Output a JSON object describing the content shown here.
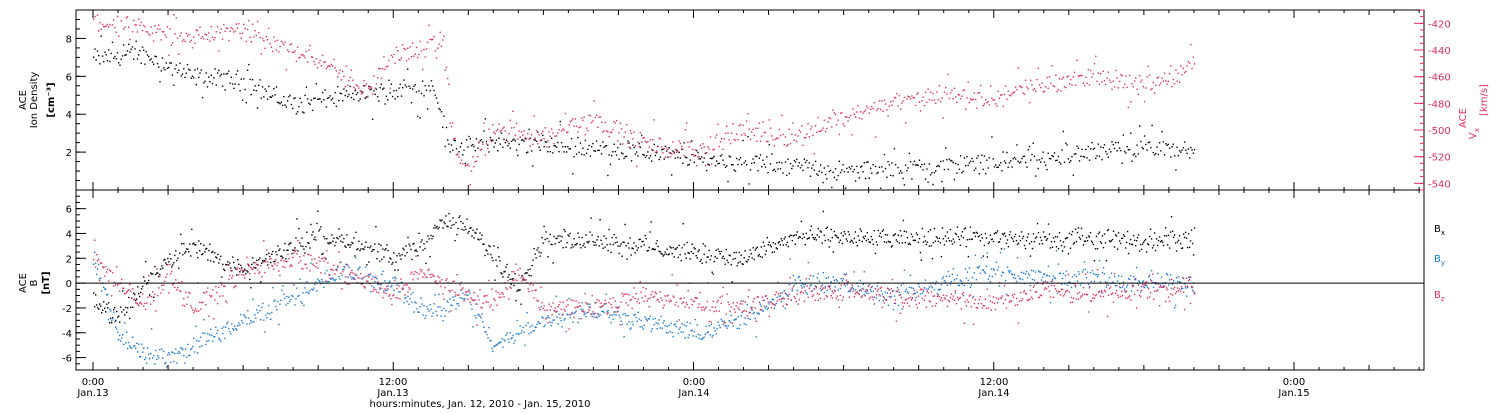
{
  "chart_data": [
    {
      "type": "scatter",
      "panel": "top",
      "ylabel_lines": [
        "ACE",
        "Ion Density"
      ],
      "yunit": "[cm⁻³]",
      "ylabel_right_lines": [
        "ACE",
        "V",
        "[km/s]"
      ],
      "ylabel_right_sub": "x",
      "yticks": [
        "2",
        "4",
        "6",
        "8"
      ],
      "yticks_right": [
        "-420",
        "-440",
        "-460",
        "-480",
        "-500",
        "-520",
        "-540"
      ],
      "ylim": [
        0,
        9.5
      ],
      "ylim_right": [
        -545,
        -410
      ],
      "series": [
        {
          "color": "#000000",
          "axis": "left",
          "x": [
            0,
            2,
            4,
            6,
            8,
            10,
            12,
            13,
            13.6,
            14.2,
            15,
            16,
            18,
            20,
            22,
            24,
            26,
            28,
            30,
            32,
            34,
            36,
            38,
            40,
            42,
            44
          ],
          "values": [
            7.0,
            7.2,
            6.0,
            5.8,
            4.5,
            5.0,
            5.2,
            5.4,
            5.6,
            2.4,
            2.3,
            2.6,
            2.4,
            2.2,
            2.0,
            1.7,
            1.5,
            1.3,
            1.0,
            1.1,
            1.3,
            1.5,
            1.6,
            2.0,
            2.2,
            2.0
          ]
        },
        {
          "color": "#e0305a",
          "axis": "right",
          "x": [
            0,
            2,
            4,
            6,
            8,
            9,
            10,
            11,
            12,
            13,
            14,
            14.5,
            15,
            16,
            18,
            20,
            22,
            24,
            26,
            28,
            30,
            32,
            34,
            36,
            38,
            40,
            42,
            43.5,
            44
          ],
          "values": [
            -418,
            -425,
            -430,
            -425,
            -440,
            -445,
            -458,
            -470,
            -443,
            -440,
            -435,
            -520,
            -528,
            -500,
            -505,
            -490,
            -510,
            -515,
            -500,
            -505,
            -490,
            -480,
            -472,
            -475,
            -465,
            -458,
            -467,
            -458,
            -450
          ]
        }
      ]
    },
    {
      "type": "scatter",
      "panel": "bottom",
      "ylabel_lines": [
        "ACE",
        "B"
      ],
      "yunit": "[nT]",
      "yticks": [
        "-6",
        "-4",
        "-2",
        "0",
        "2",
        "4",
        "6"
      ],
      "ylim": [
        -7,
        7.5
      ],
      "series": [
        {
          "name": "B",
          "sub": "x",
          "color": "#000000",
          "x": [
            0,
            1,
            2,
            3,
            4,
            6,
            8,
            9,
            10,
            12,
            13,
            14,
            15,
            16,
            17,
            18,
            20,
            22,
            24,
            26,
            28,
            30,
            32,
            34,
            36,
            38,
            40,
            42,
            44
          ],
          "values": [
            -1,
            -3,
            0,
            2,
            3,
            1,
            3,
            4,
            3.5,
            2,
            3,
            5,
            4.5,
            2,
            0,
            3.5,
            3.6,
            3.0,
            2.5,
            2.0,
            3.8,
            3.8,
            3.5,
            3.8,
            3.6,
            3.5,
            3.7,
            3.4,
            3.6
          ]
        },
        {
          "name": "B",
          "sub": "y",
          "color": "#1a7ad4",
          "x": [
            0,
            1,
            2,
            3,
            4,
            6,
            8,
            10,
            12,
            13,
            14,
            15,
            16,
            17,
            18,
            20,
            22,
            24,
            26,
            28,
            30,
            32,
            34,
            36,
            38,
            40,
            42,
            44
          ],
          "values": [
            2,
            -4,
            -5.5,
            -6,
            -5,
            -3,
            -1,
            1,
            0,
            -2,
            -2,
            -1,
            -5,
            -4,
            -3,
            -2,
            -3,
            -4,
            -3,
            0,
            0,
            -1,
            0,
            1,
            0.5,
            0.5,
            0,
            0
          ]
        },
        {
          "name": "B",
          "sub": "z",
          "color": "#e0305a",
          "x": [
            0,
            1,
            2,
            3,
            4,
            6,
            8,
            10,
            12,
            13,
            14,
            15,
            16,
            17,
            18,
            20,
            22,
            24,
            26,
            28,
            30,
            32,
            34,
            36,
            38,
            40,
            42,
            44
          ],
          "values": [
            2,
            0,
            -2,
            1,
            -2,
            1,
            2,
            1,
            -1,
            1,
            0,
            -1,
            -1.5,
            1,
            -2,
            -2,
            -1,
            -1.5,
            -2,
            -1,
            -0.5,
            -1,
            -1.2,
            -1.5,
            -0.5,
            -1.0,
            -0.5,
            -0.3
          ]
        }
      ]
    }
  ],
  "x_axis": {
    "time_labels": [
      "0:00",
      "12:00",
      "0:00",
      "12:00",
      "0:00"
    ],
    "date_labels": [
      "Jan.13",
      "Jan.13",
      "Jan.14",
      "Jan.14",
      "Jan.15"
    ],
    "title": "hours:minutes, Jan. 12, 2010 - Jan. 15, 2010"
  }
}
